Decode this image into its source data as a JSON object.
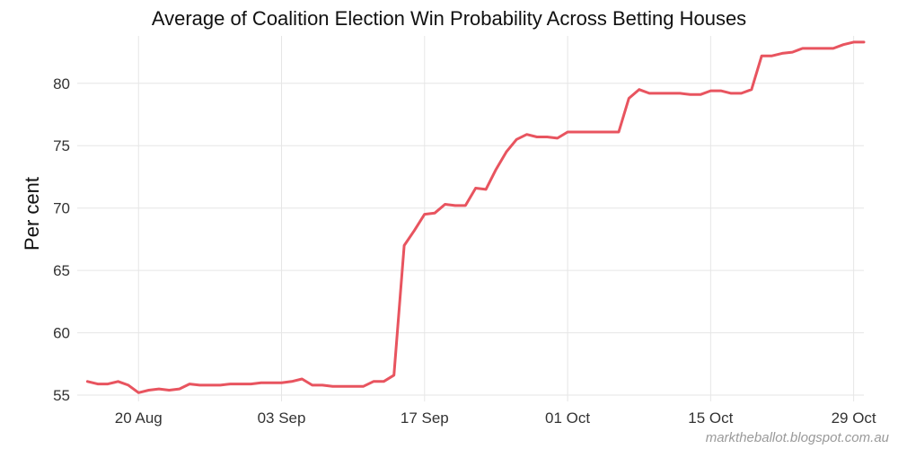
{
  "chart_data": {
    "type": "line",
    "title": "Average of Coalition Election Win Probability Across Betting Houses",
    "ylabel": "Per cent",
    "xlabel": "",
    "credit": "marktheballot.blogspot.com.au",
    "colors": {
      "line": "#e8545f",
      "grid": "#e6e6e6"
    },
    "grid": true,
    "legend": "none",
    "ylim": [
      54.5,
      83.8
    ],
    "xlim": [
      "2013-08-14",
      "2013-10-30"
    ],
    "yticks": [
      55,
      60,
      65,
      70,
      75,
      80
    ],
    "xticks": [
      {
        "date": "2013-08-20",
        "label": "20 Aug"
      },
      {
        "date": "2013-09-03",
        "label": "03 Sep"
      },
      {
        "date": "2013-09-17",
        "label": "17 Sep"
      },
      {
        "date": "2013-10-01",
        "label": "01 Oct"
      },
      {
        "date": "2013-10-15",
        "label": "15 Oct"
      },
      {
        "date": "2013-10-29",
        "label": "29 Oct"
      }
    ],
    "series": [
      {
        "points": [
          [
            "2013-08-15",
            56.1
          ],
          [
            "2013-08-16",
            55.9
          ],
          [
            "2013-08-17",
            55.9
          ],
          [
            "2013-08-18",
            56.1
          ],
          [
            "2013-08-19",
            55.8
          ],
          [
            "2013-08-20",
            55.2
          ],
          [
            "2013-08-21",
            55.4
          ],
          [
            "2013-08-22",
            55.5
          ],
          [
            "2013-08-23",
            55.4
          ],
          [
            "2013-08-24",
            55.5
          ],
          [
            "2013-08-25",
            55.9
          ],
          [
            "2013-08-26",
            55.8
          ],
          [
            "2013-08-27",
            55.8
          ],
          [
            "2013-08-28",
            55.8
          ],
          [
            "2013-08-29",
            55.9
          ],
          [
            "2013-08-30",
            55.9
          ],
          [
            "2013-08-31",
            55.9
          ],
          [
            "2013-09-01",
            56.0
          ],
          [
            "2013-09-02",
            56.0
          ],
          [
            "2013-09-03",
            56.0
          ],
          [
            "2013-09-04",
            56.1
          ],
          [
            "2013-09-05",
            56.3
          ],
          [
            "2013-09-06",
            55.8
          ],
          [
            "2013-09-07",
            55.8
          ],
          [
            "2013-09-08",
            55.7
          ],
          [
            "2013-09-09",
            55.7
          ],
          [
            "2013-09-10",
            55.7
          ],
          [
            "2013-09-11",
            55.7
          ],
          [
            "2013-09-12",
            56.1
          ],
          [
            "2013-09-13",
            56.1
          ],
          [
            "2013-09-14",
            56.6
          ],
          [
            "2013-09-15",
            67.0
          ],
          [
            "2013-09-16",
            68.2
          ],
          [
            "2013-09-17",
            69.5
          ],
          [
            "2013-09-18",
            69.6
          ],
          [
            "2013-09-19",
            70.3
          ],
          [
            "2013-09-20",
            70.2
          ],
          [
            "2013-09-21",
            70.2
          ],
          [
            "2013-09-22",
            71.6
          ],
          [
            "2013-09-23",
            71.5
          ],
          [
            "2013-09-24",
            73.1
          ],
          [
            "2013-09-25",
            74.5
          ],
          [
            "2013-09-26",
            75.5
          ],
          [
            "2013-09-27",
            75.9
          ],
          [
            "2013-09-28",
            75.7
          ],
          [
            "2013-09-29",
            75.7
          ],
          [
            "2013-09-30",
            75.6
          ],
          [
            "2013-10-01",
            76.1
          ],
          [
            "2013-10-02",
            76.1
          ],
          [
            "2013-10-03",
            76.1
          ],
          [
            "2013-10-04",
            76.1
          ],
          [
            "2013-10-05",
            76.1
          ],
          [
            "2013-10-06",
            76.1
          ],
          [
            "2013-10-07",
            78.8
          ],
          [
            "2013-10-08",
            79.5
          ],
          [
            "2013-10-09",
            79.2
          ],
          [
            "2013-10-10",
            79.2
          ],
          [
            "2013-10-11",
            79.2
          ],
          [
            "2013-10-12",
            79.2
          ],
          [
            "2013-10-13",
            79.1
          ],
          [
            "2013-10-14",
            79.1
          ],
          [
            "2013-10-15",
            79.4
          ],
          [
            "2013-10-16",
            79.4
          ],
          [
            "2013-10-17",
            79.2
          ],
          [
            "2013-10-18",
            79.2
          ],
          [
            "2013-10-19",
            79.5
          ],
          [
            "2013-10-20",
            82.2
          ],
          [
            "2013-10-21",
            82.2
          ],
          [
            "2013-10-22",
            82.4
          ],
          [
            "2013-10-23",
            82.5
          ],
          [
            "2013-10-24",
            82.8
          ],
          [
            "2013-10-25",
            82.8
          ],
          [
            "2013-10-26",
            82.8
          ],
          [
            "2013-10-27",
            82.8
          ],
          [
            "2013-10-28",
            83.1
          ],
          [
            "2013-10-29",
            83.3
          ],
          [
            "2013-10-30",
            83.3
          ]
        ]
      }
    ]
  }
}
